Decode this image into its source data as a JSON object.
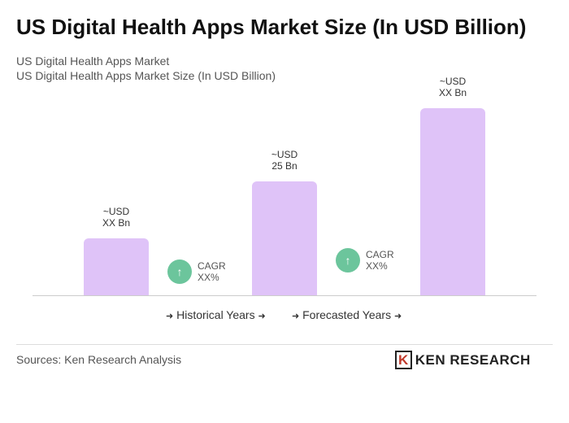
{
  "chart_data": {
    "type": "bar",
    "title": "US Digital Health Apps Market Size (In USD Billion)",
    "subtitle": [
      "US Digital Health Apps Market",
      "US Digital Health Apps Market Size (In USD Billion)"
    ],
    "categories": [
      null,
      null,
      null
    ],
    "values": [
      12.5,
      25,
      41
    ],
    "value_labels": [
      "~USD\nXX Bn",
      "~USD\n25 Bn",
      "~USD\nXX Bn"
    ],
    "color": "#dfc3f8",
    "annotations": [
      "CAGR\nXX%",
      "CAGR\nXX%"
    ],
    "annotation_color": "#6cc59c",
    "legend": [
      "Historical Years",
      "Forecasted Years"
    ],
    "source": "Sources: Ken Research Analysis",
    "logo": "KEN RESEARCH"
  }
}
